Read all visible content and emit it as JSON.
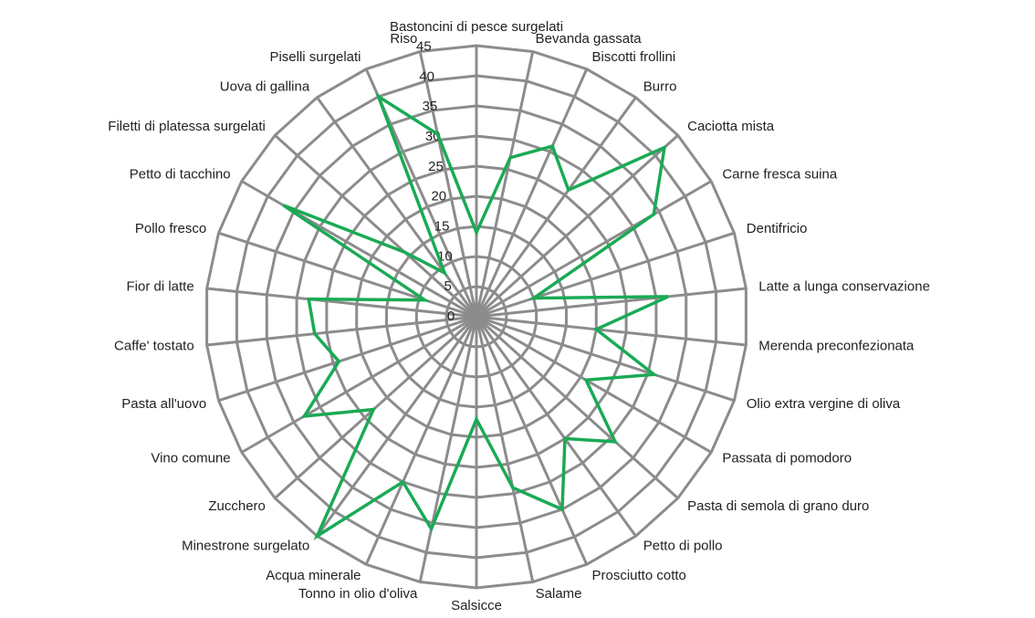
{
  "chart_data": {
    "type": "radar",
    "categories": [
      "Bastoncini di pesce surgelati",
      "Bevanda gassata",
      "Biscotti frollini",
      "Burro",
      "Caciotta mista",
      "Carne fresca suina",
      "Dentifricio",
      "Latte a lunga conservazione",
      "Merenda preconfezionata",
      "Olio extra vergine di oliva",
      "Passata di pomodoro",
      "Pasta di semola di grano duro",
      "Petto di pollo",
      "Prosciutto cotto",
      "Salame",
      "Salsicce",
      "Tonno in olio d'oliva",
      "Acqua minerale",
      "Minestrone surgelato",
      "Zucchero",
      "Vino comune",
      "Pasta all'uovo",
      "Caffe' tostato",
      "Fior di latte",
      "Pollo fresco",
      "Petto di tacchino",
      "Filetti di platessa surgelati",
      "Uova di gallina",
      "Piselli  surgelati",
      "Riso"
    ],
    "values": [
      14,
      27,
      31,
      26,
      42,
      34,
      10,
      32,
      20,
      31,
      21,
      31,
      25,
      35,
      29,
      17,
      36,
      30,
      45,
      23,
      33,
      24,
      27,
      28,
      9,
      37,
      16,
      9,
      40,
      31
    ],
    "color": "#1aaa55",
    "ylim": [
      0,
      45
    ],
    "yticks": [
      0,
      5,
      10,
      15,
      20,
      25,
      30,
      35,
      40,
      45
    ],
    "grid": true
  }
}
